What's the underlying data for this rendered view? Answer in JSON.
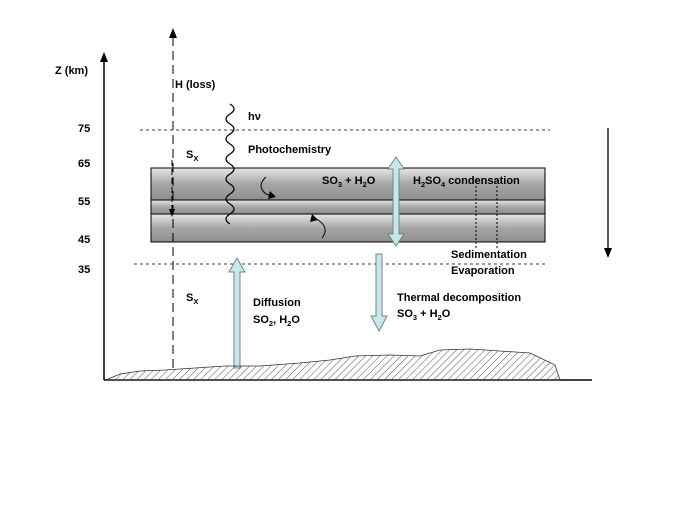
{
  "axis": {
    "ylabel": "Z (km)",
    "ticks": [
      "75",
      "65",
      "55",
      "45",
      "35"
    ]
  },
  "labels": {
    "h_loss": "H (loss)",
    "hv": "hν",
    "sx_upper": {
      "base": "S",
      "sub": "X"
    },
    "sx_lower": {
      "base": "S",
      "sub": "X"
    },
    "photochemistry": "Photochemistry",
    "so3_h2o": {
      "a": "SO",
      "a_sub": "3",
      "b": " + H",
      "b_sub": "2",
      "c": "O"
    },
    "h2so4_condensation": {
      "a": "H",
      "a_sub": "2",
      "b": "SO",
      "b_sub": "4",
      "c": " condensation"
    },
    "sedimentation": "Sedimentation",
    "evaporation": "Evaporation",
    "diffusion": "Diffusion",
    "diffusion_species": {
      "a": "SO",
      "a_sub": "2",
      "b": ", H",
      "b_sub": "2",
      "c": "O"
    },
    "thermal_decomposition": "Thermal decomposition",
    "thermal_species": {
      "a": "SO",
      "a_sub": "3",
      "b": " + H",
      "b_sub": "2",
      "c": "O"
    }
  },
  "colors": {
    "cloud_fill": "#b3b3b3",
    "arrow_fill": "#c9e6e8",
    "arrow_stroke": "#6b8a8e",
    "ground_hatch": "#555555"
  }
}
